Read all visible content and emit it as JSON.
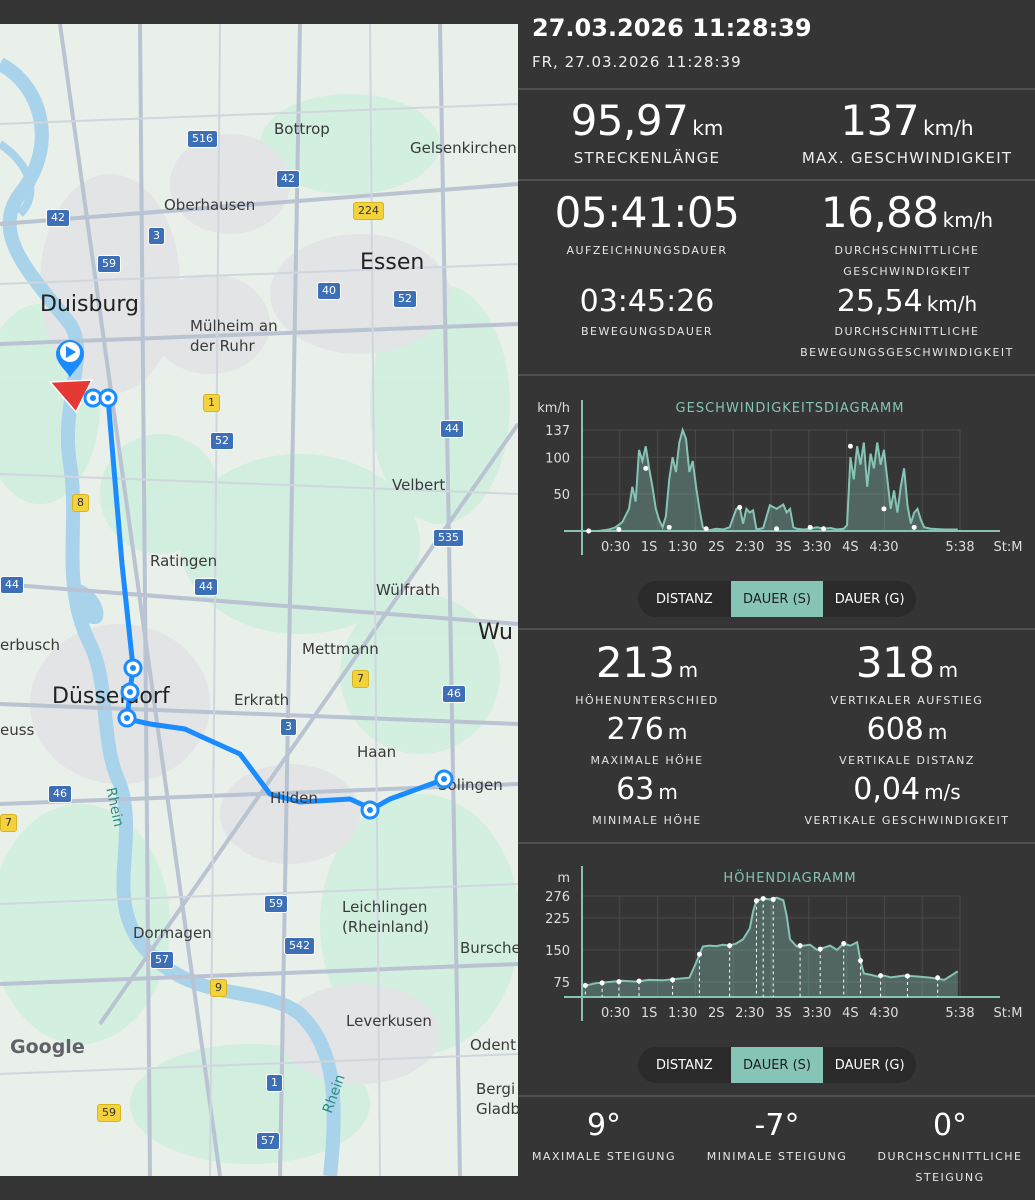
{
  "map": {
    "labels": [
      {
        "key": "bottrop",
        "text": "Bottrop",
        "cls": "town"
      },
      {
        "key": "gelsenkirchen",
        "text": "Gelsenkirchen",
        "cls": "town"
      },
      {
        "key": "oberhausen",
        "text": "Oberhausen",
        "cls": "town"
      },
      {
        "key": "essen",
        "text": "Essen",
        "cls": "city"
      },
      {
        "key": "duisburg",
        "text": "Duisburg",
        "cls": "city"
      },
      {
        "key": "muelheim",
        "text": "Mülheim an\nder Ruhr",
        "cls": "town"
      },
      {
        "key": "velbert",
        "text": "Velbert",
        "cls": "town"
      },
      {
        "key": "ratingen",
        "text": "Ratingen",
        "cls": "town"
      },
      {
        "key": "wuelfrath",
        "text": "Wülfrath",
        "cls": "town"
      },
      {
        "key": "wu",
        "text": "Wu",
        "cls": "city"
      },
      {
        "key": "erbusch",
        "text": "erbusch",
        "cls": "town"
      },
      {
        "key": "mettmann",
        "text": "Mettmann",
        "cls": "town"
      },
      {
        "key": "duesseldorf",
        "text": "Düsseldorf",
        "cls": "city"
      },
      {
        "key": "erkrath",
        "text": "Erkrath",
        "cls": "town"
      },
      {
        "key": "euss",
        "text": "euss",
        "cls": "town"
      },
      {
        "key": "haan",
        "text": "Haan",
        "cls": "town"
      },
      {
        "key": "hilden",
        "text": "Hilden",
        "cls": "town"
      },
      {
        "key": "solingen",
        "text": "Solingen",
        "cls": "town"
      },
      {
        "key": "rhein1",
        "text": "Rhein",
        "cls": "river"
      },
      {
        "key": "leichlingen",
        "text": "Leichlingen\n(Rheinland)",
        "cls": "town"
      },
      {
        "key": "dormagen",
        "text": "Dormagen",
        "cls": "town"
      },
      {
        "key": "burscheid",
        "text": "Bursche",
        "cls": "town"
      },
      {
        "key": "leverkusen",
        "text": "Leverkusen",
        "cls": "town"
      },
      {
        "key": "odenthal",
        "text": "Odent",
        "cls": "town"
      },
      {
        "key": "rhein2",
        "text": "Rhein",
        "cls": "river"
      },
      {
        "key": "bergisch",
        "text": "Bergi\nGladb",
        "cls": "town"
      },
      {
        "key": "google",
        "text": "Google",
        "cls": "logo"
      }
    ],
    "shields": [
      {
        "key": "a516",
        "text": "516",
        "color": "blue"
      },
      {
        "key": "a42a",
        "text": "42",
        "color": "blue"
      },
      {
        "key": "a42b",
        "text": "42",
        "color": "blue"
      },
      {
        "key": "b224",
        "text": "224",
        "color": "yellow"
      },
      {
        "key": "a3a",
        "text": "3",
        "color": "blue"
      },
      {
        "key": "a59a",
        "text": "59",
        "color": "blue"
      },
      {
        "key": "a40",
        "text": "40",
        "color": "blue"
      },
      {
        "key": "a52a",
        "text": "52",
        "color": "blue"
      },
      {
        "key": "b1",
        "text": "1",
        "color": "yellow"
      },
      {
        "key": "a52b",
        "text": "52",
        "color": "blue"
      },
      {
        "key": "a44a",
        "text": "44",
        "color": "blue"
      },
      {
        "key": "b8",
        "text": "8",
        "color": "yellow"
      },
      {
        "key": "a535",
        "text": "535",
        "color": "blue"
      },
      {
        "key": "a44b",
        "text": "44",
        "color": "blue"
      },
      {
        "key": "a44c",
        "text": "44",
        "color": "blue"
      },
      {
        "key": "b7",
        "text": "7",
        "color": "yellow"
      },
      {
        "key": "a46a",
        "text": "46",
        "color": "blue"
      },
      {
        "key": "a3b",
        "text": "3",
        "color": "blue"
      },
      {
        "key": "a46b",
        "text": "46",
        "color": "blue"
      },
      {
        "key": "b7b",
        "text": "7",
        "color": "yellow"
      },
      {
        "key": "a59b",
        "text": "59",
        "color": "blue"
      },
      {
        "key": "a542",
        "text": "542",
        "color": "blue"
      },
      {
        "key": "a57a",
        "text": "57",
        "color": "blue"
      },
      {
        "key": "b9",
        "text": "9",
        "color": "yellow"
      },
      {
        "key": "a1",
        "text": "1",
        "color": "blue"
      },
      {
        "key": "b59",
        "text": "59",
        "color": "yellow"
      },
      {
        "key": "a57b",
        "text": "57",
        "color": "blue"
      }
    ]
  },
  "header": {
    "title": "27.03.2026 11:28:39",
    "subtitle": "FR, 27.03.2026 11:28:39"
  },
  "stats1": {
    "distance_value": "95,97",
    "distance_unit": "km",
    "distance_label": "STRECKENLÄNGE",
    "maxspeed_value": "137",
    "maxspeed_unit": "km/h",
    "maxspeed_label": "MAX. GESCHWINDIGKEIT",
    "duration_value": "05:41:05",
    "duration_label": "AUFZEICHNUNGSDAUER",
    "avgspeed_value": "16,88",
    "avgspeed_unit": "km/h",
    "avgspeed_label1": "DURCHSCHNITTLICHE",
    "avgspeed_label2": "GESCHWINDIGKEIT",
    "moving_value": "03:45:26",
    "moving_label": "BEWEGUNGSDAUER",
    "avgmove_value": "25,54",
    "avgmove_unit": "km/h",
    "avgmove_label1": "DURCHSCHNITTLICHE",
    "avgmove_label2": "BEWEGUNGSGESCHWINDIGKEIT"
  },
  "speed_chart": {
    "title": "GESCHWINDIGKEITSDIAGRAMM",
    "yunit": "km/h",
    "yticks": [
      "137",
      "100",
      "50"
    ],
    "xticks": [
      "0:30",
      "1S",
      "1:30",
      "2S",
      "2:30",
      "3S",
      "3:30",
      "4S",
      "4:30",
      "5:38"
    ],
    "xunit": "St:M"
  },
  "toggle1": {
    "opt1": "DISTANZ",
    "opt2": "DAUER (S)",
    "opt3": "DAUER (G)"
  },
  "stats2": {
    "elevdiff_value": "213",
    "elevdiff_unit": "m",
    "elevdiff_label": "HÖHENUNTERSCHIED",
    "ascent_value": "318",
    "ascent_unit": "m",
    "ascent_label": "VERTIKALER AUFSTIEG",
    "maxh_value": "276",
    "maxh_unit": "m",
    "maxh_label": "MAXIMALE HÖHE",
    "vdist_value": "608",
    "vdist_unit": "m",
    "vdist_label": "VERTIKALE DISTANZ",
    "minh_value": "63",
    "minh_unit": "m",
    "minh_label": "MINIMALE HÖHE",
    "vspeed_value": "0,04",
    "vspeed_unit": "m/s",
    "vspeed_label": "VERTIKALE GESCHWINDIGKEIT"
  },
  "elev_chart": {
    "title": "HÖHENDIAGRAMM",
    "yunit": "m",
    "yticks": [
      "276",
      "225",
      "150",
      "75"
    ],
    "xticks": [
      "0:30",
      "1S",
      "1:30",
      "2S",
      "2:30",
      "3S",
      "3:30",
      "4S",
      "4:30",
      "5:38"
    ],
    "xunit": "St:M"
  },
  "toggle2": {
    "opt1": "DISTANZ",
    "opt2": "DAUER (S)",
    "opt3": "DAUER (G)"
  },
  "slope": {
    "max_value": "9°",
    "max_label": "MAXIMALE STEIGUNG",
    "min_value": "-7°",
    "min_label": "MINIMALE STEIGUNG",
    "avg_value": "0°",
    "avg_label1": "DURCHSCHNITTLICHE",
    "avg_label2": "STEIGUNG"
  },
  "colors": {
    "accent": "#86c4b6",
    "route": "#1a8cff",
    "panel": "#353535"
  },
  "chart_data": [
    {
      "type": "line",
      "title": "GESCHWINDIGKEITSDIAGRAMM",
      "ylabel": "km/h",
      "xlabel": "St:M",
      "ylim": [
        0,
        137
      ],
      "xlim": [
        0,
        5.633
      ],
      "x": [
        0.0,
        0.25,
        0.4,
        0.5,
        0.6,
        0.7,
        0.75,
        0.8,
        0.85,
        0.9,
        0.95,
        1.0,
        1.05,
        1.1,
        1.15,
        1.2,
        1.25,
        1.3,
        1.35,
        1.4,
        1.45,
        1.5,
        1.55,
        1.6,
        1.65,
        1.7,
        1.75,
        1.8,
        1.85,
        1.9,
        2.0,
        2.1,
        2.2,
        2.3,
        2.35,
        2.4,
        2.45,
        2.5,
        2.55,
        2.6,
        2.7,
        2.8,
        2.9,
        3.0,
        3.05,
        3.1,
        3.15,
        3.2,
        3.3,
        3.4,
        3.5,
        3.6,
        3.7,
        3.8,
        3.9,
        3.95,
        4.0,
        4.05,
        4.1,
        4.15,
        4.2,
        4.25,
        4.3,
        4.35,
        4.4,
        4.45,
        4.5,
        4.55,
        4.6,
        4.65,
        4.7,
        4.75,
        4.8,
        4.85,
        4.9,
        4.95,
        5.0,
        5.05,
        5.1,
        5.2,
        5.4,
        5.6
      ],
      "y": [
        0,
        0,
        2,
        5,
        12,
        30,
        60,
        40,
        110,
        95,
        115,
        85,
        60,
        30,
        15,
        5,
        20,
        70,
        100,
        80,
        120,
        137,
        125,
        80,
        95,
        60,
        30,
        5,
        2,
        1,
        3,
        2,
        5,
        30,
        32,
        10,
        30,
        25,
        28,
        2,
        4,
        35,
        30,
        36,
        25,
        30,
        5,
        3,
        2,
        3,
        5,
        3,
        4,
        2,
        3,
        8,
        100,
        70,
        115,
        90,
        120,
        60,
        105,
        85,
        120,
        90,
        110,
        70,
        30,
        55,
        25,
        60,
        85,
        35,
        10,
        25,
        30,
        15,
        5,
        3,
        2,
        2
      ]
    },
    {
      "type": "line",
      "title": "HÖHENDIAGRAMM",
      "ylabel": "m",
      "xlabel": "St:M",
      "ylim": [
        40,
        276
      ],
      "xlim": [
        0,
        5.633
      ],
      "x": [
        0.0,
        0.2,
        0.4,
        0.6,
        0.8,
        1.0,
        1.2,
        1.4,
        1.6,
        1.7,
        1.8,
        1.9,
        2.0,
        2.1,
        2.2,
        2.3,
        2.4,
        2.5,
        2.55,
        2.6,
        2.7,
        2.8,
        2.9,
        3.0,
        3.05,
        3.1,
        3.2,
        3.3,
        3.4,
        3.5,
        3.6,
        3.7,
        3.8,
        3.9,
        4.0,
        4.1,
        4.15,
        4.2,
        4.3,
        4.4,
        4.5,
        4.6,
        4.8,
        5.0,
        5.2,
        5.4,
        5.6
      ],
      "y": [
        65,
        72,
        75,
        78,
        76,
        80,
        79,
        82,
        85,
        120,
        158,
        160,
        159,
        162,
        160,
        165,
        175,
        200,
        240,
        265,
        270,
        268,
        272,
        266,
        230,
        175,
        158,
        160,
        162,
        150,
        155,
        160,
        150,
        165,
        160,
        168,
        125,
        95,
        92,
        88,
        90,
        86,
        90,
        88,
        85,
        80,
        100
      ]
    }
  ]
}
